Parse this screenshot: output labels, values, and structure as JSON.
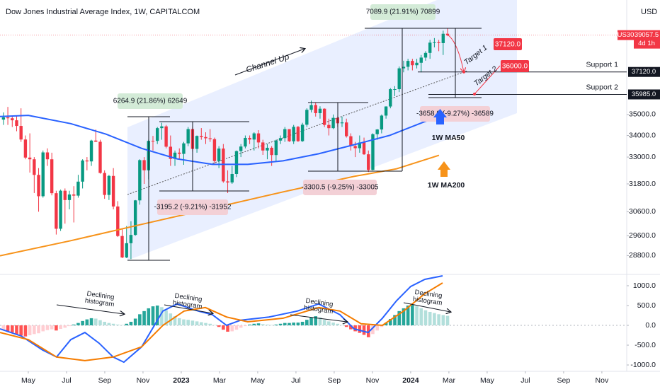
{
  "chart_data": [
    {
      "type": "candlestick",
      "title": "Dow Jones Industrial Average Index, 1W, CAPITALCOM",
      "currency": "USD",
      "log_scale": true,
      "grid": false,
      "up_color": "#089981",
      "down_color": "#f23645",
      "xlim": [
        2.52,
        35.3
      ],
      "ylim": [
        28060,
        41000
      ],
      "yticks": [
        {
          "value": 35000,
          "label": "35000.0"
        },
        {
          "value": 34000,
          "label": "34000.0"
        },
        {
          "value": 33000,
          "label": "33000.0"
        },
        {
          "value": 31800,
          "label": "31800.0"
        },
        {
          "value": 30600,
          "label": "30600.0"
        },
        {
          "value": 29600,
          "label": "29600.0"
        },
        {
          "value": 28800,
          "label": "28800.0"
        }
      ],
      "xticks": [
        {
          "value": 4,
          "label": "May"
        },
        {
          "value": 6,
          "label": "Jul"
        },
        {
          "value": 8,
          "label": "Sep"
        },
        {
          "value": 10,
          "label": "Nov"
        },
        {
          "value": 12,
          "label": "2023"
        },
        {
          "value": 14,
          "label": "Mar"
        },
        {
          "value": 16,
          "label": "May"
        },
        {
          "value": 18,
          "label": "Jul"
        },
        {
          "value": 20,
          "label": "Sep"
        },
        {
          "value": 22,
          "label": "Nov"
        },
        {
          "value": 24,
          "label": "2024"
        },
        {
          "value": 26,
          "label": "Mar"
        },
        {
          "value": 28,
          "label": "May"
        },
        {
          "value": 30,
          "label": "Jul"
        },
        {
          "value": 32,
          "label": "Sep"
        },
        {
          "value": 34,
          "label": "Nov"
        }
      ],
      "x": [
        2.7,
        2.93,
        3.16,
        3.39,
        3.62,
        3.85,
        4.08,
        4.31,
        4.54,
        4.77,
        5.0,
        5.23,
        5.46,
        5.69,
        5.92,
        6.15,
        6.38,
        6.61,
        6.84,
        7.07,
        7.3,
        7.53,
        7.76,
        7.99,
        8.22,
        8.45,
        8.68,
        8.91,
        9.14,
        9.37,
        9.6,
        9.83,
        10.06,
        10.29,
        10.52,
        10.75,
        10.98,
        11.21,
        11.44,
        11.67,
        11.9,
        12.13,
        12.36,
        12.59,
        12.82,
        13.05,
        13.28,
        13.51,
        13.74,
        13.97,
        14.2,
        14.43,
        14.66,
        14.89,
        15.12,
        15.35,
        15.58,
        15.81,
        16.04,
        16.27,
        16.5,
        16.73,
        16.96,
        17.19,
        17.42,
        17.65,
        17.88,
        18.11,
        18.34,
        18.57,
        18.8,
        19.03,
        19.26,
        19.49,
        19.72,
        19.95,
        20.18,
        20.41,
        20.64,
        20.87,
        21.1,
        21.33,
        21.56,
        21.79,
        22.02,
        22.25,
        22.48,
        22.71,
        22.94,
        23.17,
        23.4,
        23.63,
        23.86,
        24.09,
        24.32,
        24.55,
        24.78,
        25.01,
        25.24,
        25.47,
        25.7,
        25.93
      ],
      "ohlc": [
        [
          34754,
          35100,
          34500,
          34861
        ],
        [
          34861,
          35370,
          34500,
          34818
        ],
        [
          34818,
          34900,
          34400,
          34721
        ],
        [
          34721,
          34950,
          34200,
          34451
        ],
        [
          34451,
          35300,
          33700,
          33811
        ],
        [
          33811,
          34000,
          32900,
          32977
        ],
        [
          32977,
          34100,
          32300,
          32899
        ],
        [
          32899,
          33000,
          31400,
          32197
        ],
        [
          32197,
          32500,
          30600,
          31262
        ],
        [
          31262,
          33300,
          31200,
          33213
        ],
        [
          33213,
          33400,
          32600,
          32899
        ],
        [
          32899,
          33200,
          31300,
          31393
        ],
        [
          31393,
          31500,
          29650,
          29888
        ],
        [
          29888,
          31550,
          29800,
          31501
        ],
        [
          31501,
          31600,
          30100,
          31097
        ],
        [
          31097,
          31500,
          30700,
          31338
        ],
        [
          31338,
          31700,
          30150,
          31288
        ],
        [
          31288,
          32200,
          31200,
          31899
        ],
        [
          31899,
          32900,
          31600,
          32845
        ],
        [
          32845,
          33000,
          32400,
          32803
        ],
        [
          32803,
          33800,
          32600,
          33761
        ],
        [
          33761,
          34280,
          33700,
          33706
        ],
        [
          33706,
          33800,
          32250,
          32283
        ],
        [
          32283,
          32400,
          31150,
          31318
        ],
        [
          31318,
          32200,
          31100,
          32151
        ],
        [
          32151,
          32500,
          30700,
          30822
        ],
        [
          30822,
          31050,
          29550,
          29590
        ],
        [
          29590,
          29900,
          28700,
          28725
        ],
        [
          28725,
          30000,
          28700,
          29297
        ],
        [
          29297,
          30200,
          28660,
          29634
        ],
        [
          29634,
          31100,
          29600,
          31083
        ],
        [
          31083,
          32900,
          30900,
          32861
        ],
        [
          32861,
          33000,
          31800,
          32403
        ],
        [
          32403,
          33800,
          32000,
          33747
        ],
        [
          33747,
          33980,
          33300,
          33746
        ],
        [
          33746,
          34400,
          33600,
          34347
        ],
        [
          34347,
          34600,
          33800,
          34430
        ],
        [
          34430,
          34500,
          33400,
          33476
        ],
        [
          33476,
          34000,
          32600,
          32920
        ],
        [
          32920,
          33300,
          32600,
          33203
        ],
        [
          33203,
          33400,
          32900,
          33147
        ],
        [
          33147,
          33700,
          32650,
          33631
        ],
        [
          33631,
          34400,
          33500,
          34302
        ],
        [
          34302,
          34400,
          33250,
          33375
        ],
        [
          33375,
          34000,
          33200,
          33978
        ],
        [
          33978,
          34350,
          33800,
          33926
        ],
        [
          33926,
          34150,
          33600,
          33869
        ],
        [
          33869,
          34300,
          33700,
          33827
        ],
        [
          33827,
          33900,
          32700,
          32817
        ],
        [
          32817,
          33500,
          32500,
          33391
        ],
        [
          33391,
          33600,
          31850,
          31910
        ],
        [
          31910,
          32400,
          31400,
          31862
        ],
        [
          31862,
          32600,
          31800,
          32238
        ],
        [
          32238,
          33300,
          32100,
          33274
        ],
        [
          33274,
          33600,
          33000,
          33485
        ],
        [
          33485,
          34000,
          33400,
          33886
        ],
        [
          33886,
          34000,
          33600,
          33809
        ],
        [
          33809,
          34150,
          33300,
          34098
        ],
        [
          34098,
          34250,
          33400,
          33674
        ],
        [
          33674,
          33800,
          33100,
          33301
        ],
        [
          33301,
          33600,
          32900,
          33427
        ],
        [
          33427,
          33500,
          32600,
          33093
        ],
        [
          33093,
          33800,
          32800,
          33762
        ],
        [
          33762,
          34000,
          33600,
          33877
        ],
        [
          33877,
          34400,
          33700,
          34299
        ],
        [
          34299,
          34300,
          33700,
          33727
        ],
        [
          33727,
          34500,
          33600,
          34408
        ],
        [
          34408,
          34450,
          33700,
          33734
        ],
        [
          33734,
          34600,
          33700,
          34509
        ],
        [
          34509,
          35300,
          34400,
          35228
        ],
        [
          35228,
          35680,
          35100,
          35459
        ],
        [
          35459,
          35600,
          34900,
          35066
        ],
        [
          35066,
          35400,
          34800,
          35281
        ],
        [
          35281,
          35300,
          34400,
          34500
        ],
        [
          34500,
          34800,
          34000,
          34346
        ],
        [
          34346,
          35000,
          34300,
          34838
        ],
        [
          34838,
          34900,
          34400,
          34577
        ],
        [
          34577,
          34900,
          34400,
          34618
        ],
        [
          34618,
          34800,
          33900,
          33964
        ],
        [
          33964,
          34100,
          33300,
          33508
        ],
        [
          33508,
          33700,
          33000,
          33407
        ],
        [
          33407,
          34000,
          33200,
          33670
        ],
        [
          33670,
          33900,
          33100,
          33127
        ],
        [
          33127,
          33300,
          32327,
          32418
        ],
        [
          32418,
          34100,
          32400,
          34061
        ],
        [
          34061,
          34300,
          33800,
          34283
        ],
        [
          34283,
          35000,
          34100,
          34947
        ],
        [
          34947,
          35400,
          34800,
          35390
        ],
        [
          35390,
          36300,
          35300,
          36246
        ],
        [
          36246,
          36400,
          35900,
          36248
        ],
        [
          36248,
          37400,
          36100,
          37306
        ],
        [
          37306,
          37700,
          37100,
          37385
        ],
        [
          37385,
          37800,
          37200,
          37690
        ],
        [
          37690,
          37800,
          37200,
          37466
        ],
        [
          37466,
          37800,
          37300,
          37593
        ],
        [
          37593,
          38000,
          37100,
          37864
        ],
        [
          37864,
          38200,
          37700,
          38109
        ],
        [
          38109,
          38800,
          37800,
          38654
        ],
        [
          38654,
          38900,
          38400,
          38671
        ],
        [
          38671,
          38800,
          38200,
          38628
        ],
        [
          38628,
          39300,
          38000,
          39131
        ],
        [
          39131,
          39420,
          39000,
          39057.5
        ]
      ],
      "series": [
        {
          "name": "1W MA50",
          "color": "#2962ff",
          "x": [
            2.52,
            4,
            6.22,
            8.07,
            9.93,
            11.78,
            13.63,
            15.48,
            17.33,
            19.19,
            21.04,
            22.89,
            24.74,
            25.48
          ],
          "values": [
            34900,
            34960,
            34560,
            34060,
            33400,
            32920,
            32670,
            32670,
            32830,
            33150,
            33570,
            34000,
            34660,
            34900
          ]
        },
        {
          "name": "1W MA200",
          "color": "#f7931a",
          "x": [
            2.52,
            6.22,
            9.93,
            13.63,
            17.33,
            21.04,
            23.26,
            25.48
          ],
          "values": [
            28790,
            29400,
            30070,
            30750,
            31450,
            32130,
            32470,
            33080
          ]
        }
      ],
      "last_price": {
        "symbol": "US30",
        "value": 39057.5,
        "label": "39057.5",
        "countdown": "4d 1h",
        "color": "#f23645"
      },
      "support_levels": [
        {
          "name": "Support 1",
          "value": 37120,
          "label": "37120.0"
        },
        {
          "name": "Support 2",
          "value": 35985,
          "label": "35985.0"
        }
      ],
      "targets": [
        {
          "name": "Target 1",
          "value": 37120,
          "label": "37120.0"
        },
        {
          "name": "Target 2",
          "value": 36000,
          "label": "36000.0"
        }
      ],
      "channel": "Channel Up",
      "measures": [
        "6264.9 (21.86%) 62649",
        "-3195.2 (-9.21%) -31952",
        "-3300.5 (-9.25%) -33005",
        "7089.9 (21.91%) 70899",
        "-3658.9 (-9.27%) -36589"
      ]
    },
    {
      "type": "macd",
      "ylim": [
        -1160,
        1285
      ],
      "yticks": [
        {
          "value": 1000,
          "label": "1000.0"
        },
        {
          "value": 500,
          "label": "500.0"
        },
        {
          "value": 0,
          "label": "0.0"
        },
        {
          "value": -500,
          "label": "-500.0"
        },
        {
          "value": -1000,
          "label": "-1000.0"
        }
      ],
      "histogram": [
        -120,
        -150,
        -180,
        -230,
        -260,
        -280,
        -250,
        -220,
        -200,
        -150,
        -120,
        -100,
        -130,
        -90,
        -60,
        -20,
        20,
        60,
        110,
        150,
        180,
        170,
        130,
        90,
        60,
        40,
        20,
        10,
        40,
        90,
        170,
        280,
        360,
        430,
        480,
        500,
        460,
        380,
        300,
        230,
        180,
        150,
        140,
        120,
        100,
        80,
        60,
        40,
        10,
        -40,
        -110,
        -160,
        -150,
        -110,
        -60,
        -20,
        20,
        40,
        50,
        30,
        20,
        10,
        20,
        40,
        60,
        60,
        70,
        70,
        90,
        140,
        200,
        230,
        200,
        140,
        100,
        70,
        40,
        10,
        -40,
        -100,
        -150,
        -190,
        -240,
        -300,
        -220,
        -130,
        -40,
        60,
        160,
        260,
        360,
        430,
        500,
        520,
        480,
        430,
        380,
        340,
        310,
        280,
        260,
        240
      ],
      "histogram_colors": [
        "#26a69a",
        "#b2dfdb",
        "#ff5252",
        "#ffcdd2"
      ],
      "series": [
        {
          "color": "#2962ff",
          "x": [
            2.52,
            3.63,
            4.74,
            5.48,
            6.22,
            6.96,
            7.7,
            8.44,
            9.0,
            9.93,
            11.04,
            11.78,
            12.89,
            13.63,
            14.37,
            15.11,
            16.59,
            18.07,
            19.19,
            20.3,
            21.04,
            21.78,
            22.52,
            23.26,
            24.0,
            24.74,
            25.67
          ],
          "values": [
            -90,
            -270,
            -620,
            -800,
            -360,
            -180,
            -450,
            -800,
            -930,
            -540,
            360,
            540,
            360,
            270,
            0,
            130,
            210,
            360,
            540,
            270,
            -90,
            -180,
            180,
            620,
            980,
            1160,
            1250
          ]
        },
        {
          "color": "#f57c00",
          "x": [
            2.52,
            4,
            5.48,
            6.96,
            8.44,
            9.93,
            11.04,
            12.15,
            13.26,
            14.37,
            15.48,
            17.33,
            19.19,
            20.3,
            21.41,
            22.52,
            23.63,
            24.74,
            25.67
          ],
          "values": [
            -180,
            -360,
            -800,
            -890,
            -800,
            -540,
            0,
            360,
            450,
            210,
            90,
            180,
            450,
            360,
            40,
            0,
            360,
            800,
            1070
          ]
        }
      ],
      "annotations": [
        [
          "Declining",
          "histogram"
        ],
        [
          "Declining",
          "histogram"
        ],
        [
          "Declining",
          "histogram"
        ],
        [
          "Declining",
          "histogram"
        ]
      ]
    }
  ]
}
